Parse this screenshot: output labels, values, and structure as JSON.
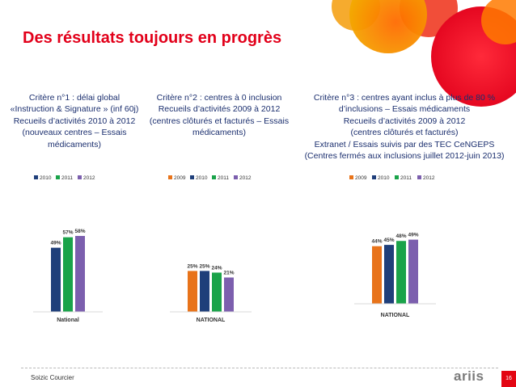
{
  "slide": {
    "title": "Des résultats toujours en progrès",
    "author": "Soizic Courcier",
    "page_number": "16",
    "logo_text": "ariis"
  },
  "criteria": [
    {
      "lines": [
        "Critère n°1 : délai global",
        "«Instruction & Signature » (inf 60j)",
        "Recueils d’activités 2010 à 2012",
        "(nouveaux centres – Essais",
        "médicaments)"
      ]
    },
    {
      "lines": [
        "Critère n°2 : centres à 0 inclusion",
        "Recueils d’activités 2009 à 2012",
        "(centres clôturés et facturés – Essais",
        "médicaments)"
      ]
    },
    {
      "lines": [
        "Critère n°3 : centres ayant inclus à plus de 80 %",
        "d’inclusions – Essais médicaments",
        "Recueils d’activités 2009 à 2012",
        "(centres clôturés et facturés)",
        "Extranet / Essais suivis par des TEC CeNGEPS",
        "(Centres fermés aux inclusions juillet 2012-juin 2013)"
      ]
    }
  ],
  "colors": {
    "title": "#e2001a",
    "criteria_text": "#1a2e6e",
    "2009": "#e8731a",
    "2010": "#1f3f7a",
    "2011": "#1aa34a",
    "2012": "#7c5fae"
  },
  "chart_data": [
    {
      "type": "bar",
      "categories": [
        "National"
      ],
      "series": [
        {
          "name": "2010",
          "values": [
            49
          ]
        },
        {
          "name": "2011",
          "values": [
            57
          ]
        },
        {
          "name": "2012",
          "values": [
            58
          ]
        }
      ],
      "data_labels": [
        "49%",
        "57%",
        "58%"
      ],
      "ylim": [
        0,
        100
      ],
      "legend": "top",
      "grid": false
    },
    {
      "type": "bar",
      "categories": [
        "NATIONAL"
      ],
      "series": [
        {
          "name": "2009",
          "values": [
            25
          ]
        },
        {
          "name": "2010",
          "values": [
            25
          ]
        },
        {
          "name": "2011",
          "values": [
            24
          ]
        },
        {
          "name": "2012",
          "values": [
            21
          ]
        }
      ],
      "data_labels": [
        "25%",
        "25%",
        "24%",
        "21%"
      ],
      "ylim": [
        0,
        100
      ],
      "legend": "top",
      "grid": false
    },
    {
      "type": "bar",
      "categories": [
        "NATIONAL"
      ],
      "series": [
        {
          "name": "2009",
          "values": [
            44
          ]
        },
        {
          "name": "2010",
          "values": [
            45
          ]
        },
        {
          "name": "2011",
          "values": [
            48
          ]
        },
        {
          "name": "2012",
          "values": [
            49
          ]
        }
      ],
      "data_labels": [
        "44%",
        "45%",
        "48%",
        "49%"
      ],
      "ylim": [
        0,
        100
      ],
      "legend": "top",
      "grid": false
    }
  ]
}
